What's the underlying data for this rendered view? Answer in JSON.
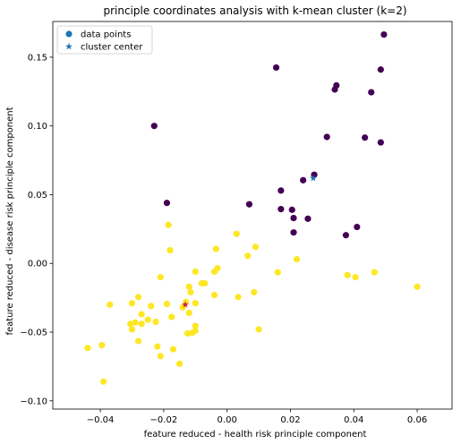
{
  "chart_data": {
    "type": "scatter",
    "title": "principle coordinates analysis with k-mean cluster (k=2)",
    "xlabel": "feature reduced - health risk principle component",
    "ylabel": "feature reduced - disease risk principle component",
    "xlim": [
      -0.055,
      0.071
    ],
    "ylim": [
      -0.106,
      0.176
    ],
    "xticks": [
      -0.04,
      -0.02,
      0.0,
      0.02,
      0.04,
      0.06
    ],
    "xtick_labels": [
      "−0.04",
      "−0.02",
      "0.00",
      "0.02",
      "0.04",
      "0.06"
    ],
    "yticks": [
      -0.1,
      -0.05,
      0.0,
      0.05,
      0.1,
      0.15
    ],
    "ytick_labels": [
      "−0.10",
      "−0.05",
      "0.00",
      "0.05",
      "0.10",
      "0.15"
    ],
    "grid": false,
    "legend_position": "top-left",
    "legend": [
      {
        "label": "data points",
        "marker": "circle",
        "color": "#1f77b4"
      },
      {
        "label": "cluster center",
        "marker": "star",
        "color": "#1f77b4"
      }
    ],
    "cluster_colors": [
      "#440154",
      "#fde725"
    ],
    "center_colors": [
      "#1f77b4",
      "#d62728"
    ],
    "series": [
      {
        "cluster": 0,
        "points": [
          [
            0.0495,
            0.1665
          ],
          [
            0.0485,
            0.141
          ],
          [
            0.0155,
            0.1425
          ],
          [
            0.0345,
            0.1295
          ],
          [
            0.034,
            0.1265
          ],
          [
            0.0455,
            0.1245
          ],
          [
            -0.023,
            0.1
          ],
          [
            0.0315,
            0.092
          ],
          [
            0.0435,
            0.0915
          ],
          [
            0.0485,
            0.088
          ],
          [
            0.0275,
            0.0645
          ],
          [
            0.024,
            0.0605
          ],
          [
            0.017,
            0.053
          ],
          [
            -0.019,
            0.044
          ],
          [
            0.007,
            0.043
          ],
          [
            0.017,
            0.0395
          ],
          [
            0.0205,
            0.039
          ],
          [
            0.021,
            0.033
          ],
          [
            0.0255,
            0.0325
          ],
          [
            0.041,
            0.0265
          ],
          [
            0.021,
            0.0225
          ],
          [
            0.0375,
            0.0205
          ]
        ]
      },
      {
        "cluster": 1,
        "points": [
          [
            -0.0185,
            0.028
          ],
          [
            0.003,
            0.0215
          ],
          [
            -0.0035,
            0.0105
          ],
          [
            -0.018,
            0.0095
          ],
          [
            0.009,
            0.012
          ],
          [
            0.0065,
            0.0055
          ],
          [
            0.022,
            0.003
          ],
          [
            -0.003,
            -0.0035
          ],
          [
            -0.004,
            -0.006
          ],
          [
            -0.01,
            -0.006
          ],
          [
            0.016,
            -0.0065
          ],
          [
            0.0465,
            -0.0065
          ],
          [
            -0.021,
            -0.01
          ],
          [
            0.038,
            -0.0085
          ],
          [
            0.0405,
            -0.01
          ],
          [
            -0.008,
            -0.0145
          ],
          [
            -0.007,
            -0.0145
          ],
          [
            -0.012,
            -0.017
          ],
          [
            0.06,
            -0.017
          ],
          [
            -0.0115,
            -0.021
          ],
          [
            0.0085,
            -0.021
          ],
          [
            -0.004,
            -0.023
          ],
          [
            0.0035,
            -0.0245
          ],
          [
            -0.028,
            -0.0245
          ],
          [
            -0.013,
            -0.028
          ],
          [
            -0.01,
            -0.029
          ],
          [
            -0.037,
            -0.03
          ],
          [
            -0.03,
            -0.029
          ],
          [
            -0.024,
            -0.031
          ],
          [
            -0.014,
            -0.032
          ],
          [
            -0.019,
            -0.0295
          ],
          [
            -0.012,
            -0.036
          ],
          [
            -0.027,
            -0.037
          ],
          [
            -0.0175,
            -0.039
          ],
          [
            -0.025,
            -0.041
          ],
          [
            -0.0225,
            -0.0425
          ],
          [
            -0.029,
            -0.043
          ],
          [
            -0.0305,
            -0.044
          ],
          [
            -0.027,
            -0.044
          ],
          [
            -0.01,
            -0.0455
          ],
          [
            -0.03,
            -0.048
          ],
          [
            -0.01,
            -0.049
          ],
          [
            0.01,
            -0.048
          ],
          [
            -0.011,
            -0.0505
          ],
          [
            -0.0125,
            -0.051
          ],
          [
            -0.028,
            -0.0565
          ],
          [
            -0.0395,
            -0.0595
          ],
          [
            -0.044,
            -0.0615
          ],
          [
            -0.022,
            -0.0605
          ],
          [
            -0.017,
            -0.0625
          ],
          [
            -0.021,
            -0.0675
          ],
          [
            -0.015,
            -0.073
          ],
          [
            -0.039,
            -0.086
          ]
        ]
      }
    ],
    "centers": [
      {
        "cluster": 0,
        "x": 0.0272,
        "y": 0.062
      },
      {
        "cluster": 1,
        "x": -0.0132,
        "y": -0.03
      }
    ]
  }
}
